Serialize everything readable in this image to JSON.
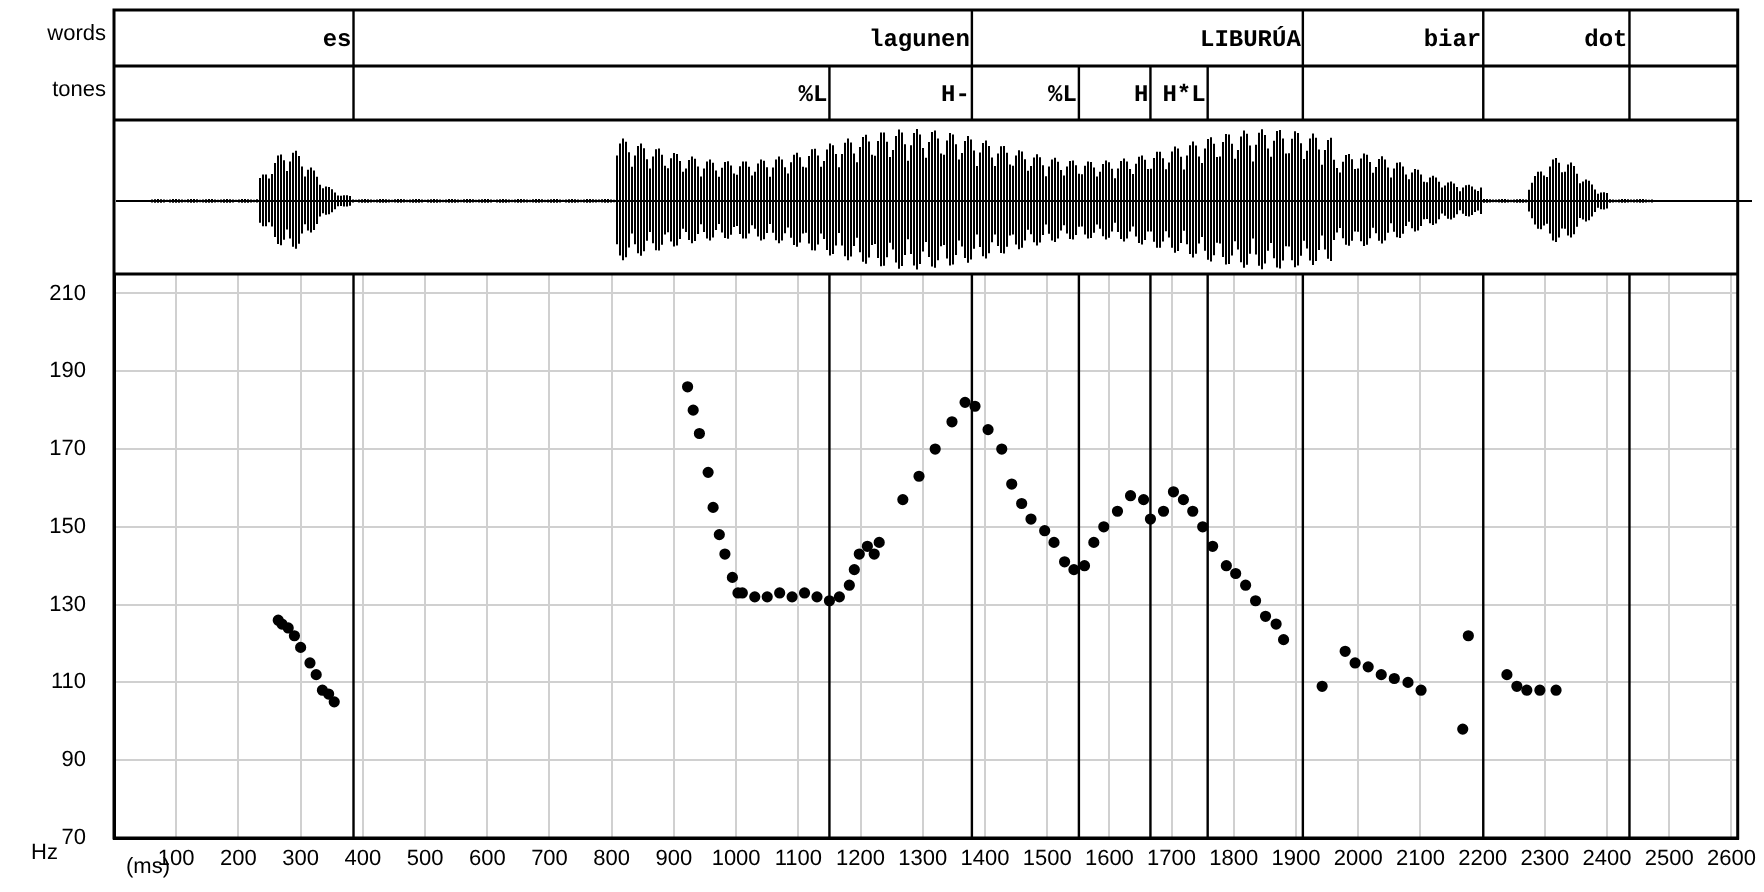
{
  "chart_data": {
    "type": "scatter",
    "xlabel": "(ms)",
    "ylabel": "Hz",
    "xlim": [
      0,
      2610
    ],
    "ylim": [
      70,
      215
    ],
    "xticks": [
      100,
      200,
      300,
      400,
      500,
      600,
      700,
      800,
      900,
      1000,
      1100,
      1200,
      1300,
      1400,
      1500,
      1600,
      1700,
      1800,
      1900,
      2000,
      2100,
      2200,
      2300,
      2400,
      2500,
      2600
    ],
    "yticks": [
      70,
      90,
      110,
      130,
      150,
      170,
      190,
      210
    ],
    "grid": true,
    "marker": "circle",
    "series": [
      {
        "color": "#000000",
        "x": [
          264,
          270,
          280,
          290,
          300,
          315,
          325,
          335,
          345,
          354,
          922,
          931,
          941,
          955,
          963,
          973,
          982,
          994,
          1003,
          1010,
          1030,
          1050,
          1070,
          1090,
          1110,
          1130,
          1150,
          1166,
          1182,
          1190,
          1198,
          1211,
          1222,
          1230,
          1268,
          1294,
          1320,
          1347,
          1368,
          1384,
          1405,
          1427,
          1443,
          1459,
          1474,
          1496,
          1511,
          1528,
          1543,
          1560,
          1575,
          1591,
          1613,
          1634,
          1655,
          1666,
          1687,
          1703,
          1719,
          1734,
          1750,
          1766,
          1788,
          1803,
          1819,
          1835,
          1851,
          1868,
          1880,
          1942,
          1979,
          1995,
          2016,
          2037,
          2058,
          2080,
          2101,
          2168,
          2177,
          2239,
          2255,
          2271,
          2292,
          2318
        ],
        "values": [
          126,
          125,
          124,
          122,
          119,
          115,
          112,
          108,
          107,
          105,
          186,
          180,
          174,
          164,
          155,
          148,
          143,
          137,
          133,
          133,
          132,
          132,
          133,
          132,
          133,
          132,
          131,
          132,
          135,
          139,
          143,
          145,
          143,
          146,
          157,
          163,
          170,
          177,
          182,
          181,
          175,
          170,
          161,
          156,
          152,
          149,
          146,
          141,
          139,
          140,
          146,
          150,
          154,
          158,
          157,
          152,
          154,
          159,
          157,
          154,
          150,
          145,
          140,
          138,
          135,
          131,
          127,
          125,
          121,
          109,
          118,
          115,
          114,
          112,
          111,
          110,
          108,
          98,
          122,
          112,
          109,
          108,
          108,
          108
        ]
      }
    ],
    "ref_lines": [
      {
        "axis": "x",
        "value": 385,
        "color": "#000000"
      },
      {
        "axis": "x",
        "value": 1379,
        "color": "#000000"
      },
      {
        "axis": "x",
        "value": 1911,
        "color": "#000000"
      },
      {
        "axis": "x",
        "value": 2201,
        "color": "#000000"
      },
      {
        "axis": "x",
        "value": 2436,
        "color": "#000000"
      },
      {
        "axis": "x",
        "value": 1150,
        "color": "#000000"
      },
      {
        "axis": "x",
        "value": 1551,
        "color": "#000000"
      },
      {
        "axis": "x",
        "value": 1666,
        "color": "#000000"
      },
      {
        "axis": "x",
        "value": 1758,
        "color": "#000000"
      }
    ],
    "annotations": [
      "words",
      "es",
      "lagunen",
      "LIBURÚA",
      "biar",
      "dot",
      "tones",
      "%L",
      "H-",
      "%L",
      "H",
      "H*L"
    ]
  }
}
